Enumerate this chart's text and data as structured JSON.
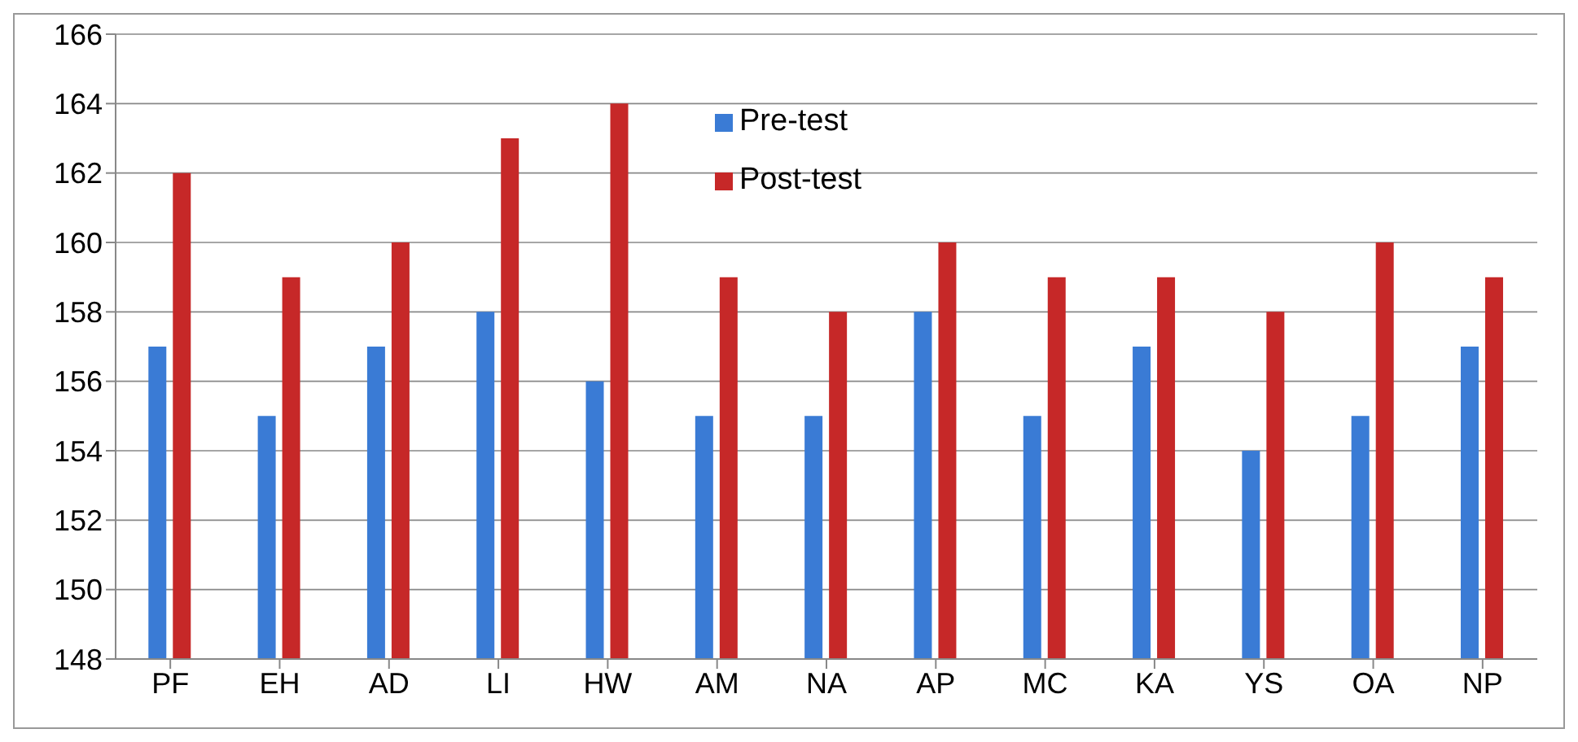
{
  "chart_data": {
    "type": "bar",
    "categories": [
      "PF",
      "EH",
      "AD",
      "LI",
      "HW",
      "AM",
      "NA",
      "AP",
      "MC",
      "KA",
      "YS",
      "OA",
      "NP"
    ],
    "series": [
      {
        "name": "Pre-test",
        "color": "#3a7bd5",
        "values": [
          157,
          155,
          157,
          158,
          156,
          155,
          155,
          158,
          155,
          157,
          154,
          155,
          157
        ]
      },
      {
        "name": "Post-test",
        "color": "#c62828",
        "values": [
          162,
          159,
          160,
          163,
          164,
          159,
          158,
          160,
          159,
          159,
          158,
          160,
          159
        ]
      }
    ],
    "ylim": [
      148,
      166
    ],
    "yticks": [
      148,
      150,
      152,
      154,
      156,
      158,
      160,
      162,
      164,
      166
    ],
    "grid": "y",
    "legend": "top"
  }
}
